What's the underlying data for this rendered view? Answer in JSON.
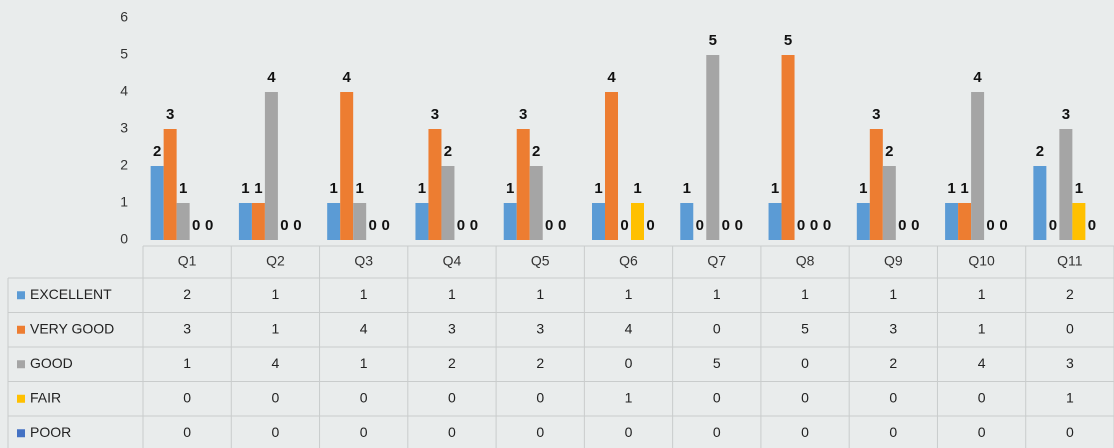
{
  "chart_data": {
    "type": "bar",
    "categories": [
      "Q1",
      "Q2",
      "Q3",
      "Q4",
      "Q5",
      "Q6",
      "Q7",
      "Q8",
      "Q9",
      "Q10",
      "Q11"
    ],
    "series": [
      {
        "name": "EXCELLENT",
        "color": "#5b9bd5",
        "values": [
          2,
          1,
          1,
          1,
          1,
          1,
          1,
          1,
          1,
          1,
          2
        ]
      },
      {
        "name": "VERY GOOD",
        "color": "#ed7d31",
        "values": [
          3,
          1,
          4,
          3,
          3,
          4,
          0,
          5,
          3,
          1,
          0
        ]
      },
      {
        "name": "GOOD",
        "color": "#a5a5a5",
        "values": [
          1,
          4,
          1,
          2,
          2,
          0,
          5,
          0,
          2,
          4,
          3
        ]
      },
      {
        "name": "FAIR",
        "color": "#ffc000",
        "values": [
          0,
          0,
          0,
          0,
          0,
          1,
          0,
          0,
          0,
          0,
          1
        ]
      },
      {
        "name": "POOR",
        "color": "#4472c4",
        "values": [
          0,
          0,
          0,
          0,
          0,
          0,
          0,
          0,
          0,
          0,
          0
        ]
      }
    ],
    "ylim": [
      0,
      6
    ],
    "yticks": [
      0,
      1,
      2,
      3,
      4,
      5,
      6
    ],
    "data_table": true
  }
}
